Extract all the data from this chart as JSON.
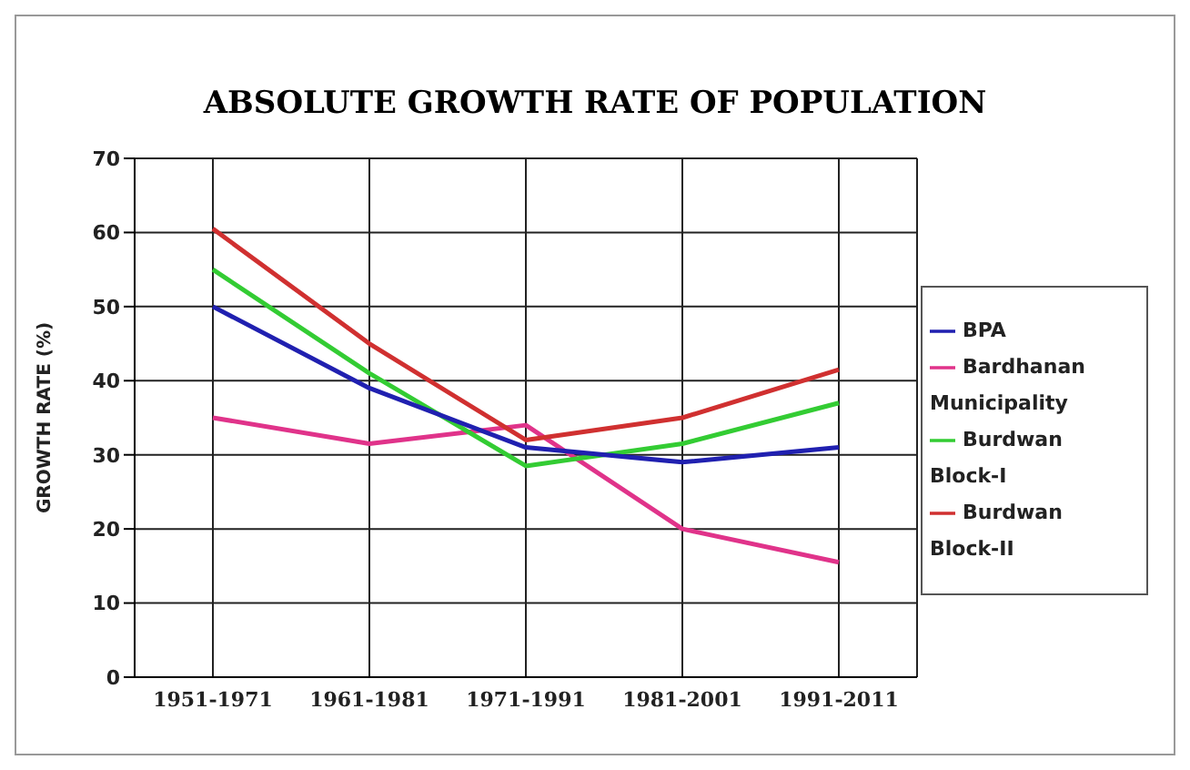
{
  "chart_data": {
    "type": "line",
    "title": "ABSOLUTE GROWTH RATE OF POPULATION",
    "ylabel": "GROWTH RATE (%)",
    "categories": [
      "1951-1971",
      "1961-1981",
      "1971-1991",
      "1981-2001",
      "1991-2011"
    ],
    "series": [
      {
        "name": "Bardhanan Municipality",
        "color": "#e0338a",
        "values": [
          35,
          31.5,
          34,
          20,
          15.5
        ]
      },
      {
        "name": "Burdwan Block-I",
        "color": "#33cc33",
        "values": [
          55,
          41,
          28.5,
          31.5,
          37
        ]
      },
      {
        "name": "Burdwan Block-II",
        "color": "#d03030",
        "values": [
          60.5,
          45,
          32,
          35,
          41.5
        ]
      },
      {
        "name": "BPA",
        "color": "#2020b0",
        "values": [
          50,
          39,
          31,
          29,
          31
        ]
      }
    ],
    "ylim": [
      0,
      70
    ],
    "yticks": [
      0,
      10,
      20,
      30,
      40,
      50,
      60,
      70
    ],
    "grid": true,
    "legend": "right",
    "marker": "none",
    "line_style": "solid"
  }
}
